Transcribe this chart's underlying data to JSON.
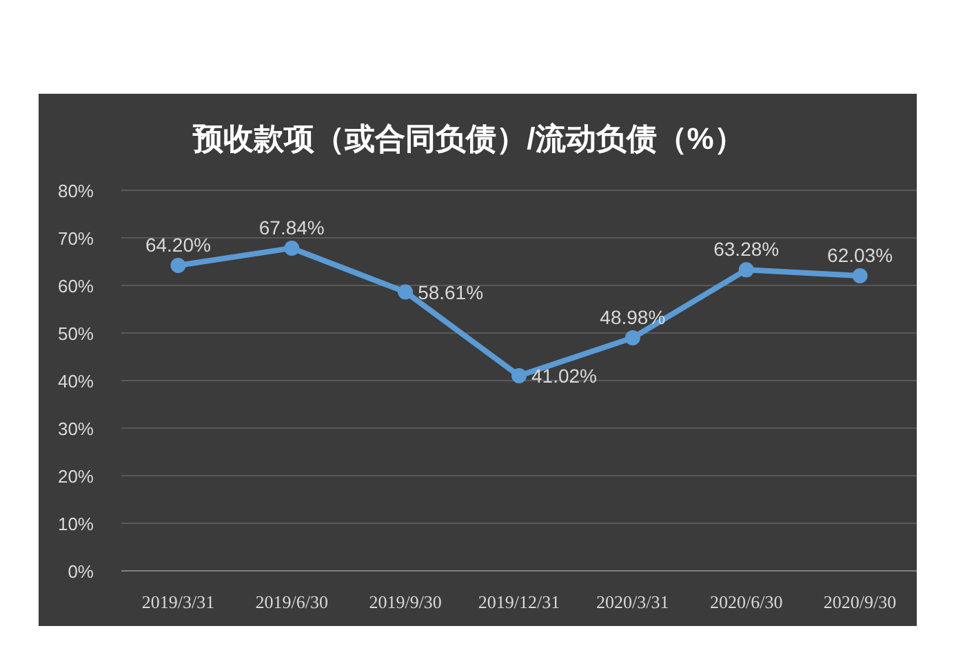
{
  "chart_data": {
    "type": "line",
    "title": "预收款项（或合同负债）/流动负债（%）",
    "categories": [
      "2019/3/31",
      "2019/6/30",
      "2019/9/30",
      "2019/12/31",
      "2020/3/31",
      "2020/6/30",
      "2020/9/30"
    ],
    "series": [
      {
        "color": "#5b9bd5",
        "values": [
          64.2,
          67.84,
          58.61,
          41.02,
          48.98,
          63.28,
          62.03
        ],
        "value_labels": [
          "64.20%",
          "67.84%",
          "58.61%",
          "41.02%",
          "48.98%",
          "63.28%",
          "62.03%"
        ]
      }
    ],
    "ylim": [
      0,
      80
    ],
    "yticks": [
      {
        "value": 0,
        "label": "0%"
      },
      {
        "value": 10,
        "label": "10%"
      },
      {
        "value": 20,
        "label": "20%"
      },
      {
        "value": 30,
        "label": "30%"
      },
      {
        "value": 40,
        "label": "40%"
      },
      {
        "value": 50,
        "label": "50%"
      },
      {
        "value": 60,
        "label": "60%"
      },
      {
        "value": 70,
        "label": "70%"
      },
      {
        "value": 80,
        "label": "80%"
      }
    ],
    "grid": "y",
    "marker": "circle"
  }
}
